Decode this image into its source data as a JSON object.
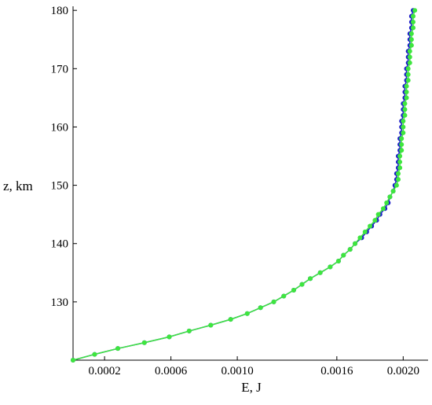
{
  "chart_data": {
    "type": "scatter",
    "xlabel": "E, J",
    "ylabel": "z, km",
    "xlim": [
      1e-05,
      0.00215
    ],
    "ylim": [
      120,
      180.7
    ],
    "xticks": [
      0.0002,
      0.0006,
      {
        "value": 0.001,
        "label": "0.0010"
      },
      0.0016,
      {
        "value": 0.002,
        "label": "0.0020"
      }
    ],
    "yticks": [
      130,
      140,
      150,
      160,
      170,
      180
    ],
    "series": [
      {
        "color": "#1c1cc8",
        "x": [
          1e-05,
          0.00014,
          0.00028,
          0.00044,
          0.00059,
          0.00071,
          0.00084,
          0.00096,
          0.00106,
          0.00114,
          0.00122,
          0.00128,
          0.00134,
          0.00139,
          0.00144,
          0.0015,
          0.00156,
          0.00161,
          0.00164,
          0.00168,
          0.00171,
          0.00175,
          0.00178,
          0.00181,
          0.00184,
          0.00186,
          0.00189,
          0.00191,
          0.00192,
          0.00194,
          0.00195,
          0.00196,
          0.00196,
          0.00197,
          0.00197,
          0.00197,
          0.00198,
          0.00198,
          0.00198,
          0.00199,
          0.00199,
          0.00199,
          0.002,
          0.002,
          0.002,
          0.00201,
          0.00201,
          0.00201,
          0.00202,
          0.00202,
          0.00202,
          0.00203,
          0.00203,
          0.00203,
          0.00204,
          0.00204,
          0.00204,
          0.00205,
          0.00205,
          0.00205,
          0.00206
        ],
        "y": [
          120,
          121,
          122,
          123,
          124,
          125,
          126,
          127,
          128,
          129,
          130,
          131,
          132,
          133,
          134,
          135,
          136,
          137,
          138,
          139,
          140,
          141,
          142,
          143,
          144,
          145,
          146,
          147,
          148,
          149,
          150,
          151,
          152,
          153,
          154,
          155,
          156,
          157,
          158,
          159,
          160,
          161,
          162,
          163,
          164,
          165,
          166,
          167,
          168,
          169,
          170,
          171,
          172,
          173,
          174,
          175,
          176,
          177,
          178,
          179,
          180
        ]
      },
      {
        "color": "#3ee63e",
        "x": [
          1e-05,
          0.00014,
          0.00028,
          0.00044,
          0.00059,
          0.00071,
          0.00084,
          0.00096,
          0.00106,
          0.00114,
          0.00122,
          0.00128,
          0.00134,
          0.00139,
          0.00144,
          0.0015,
          0.00156,
          0.00161,
          0.00164,
          0.00168,
          0.00171,
          0.00174,
          0.00177,
          0.0018,
          0.00183,
          0.00185,
          0.00188,
          0.0019,
          0.00192,
          0.00194,
          0.00196,
          0.00197,
          0.00197,
          0.00198,
          0.00198,
          0.00198,
          0.00199,
          0.00199,
          0.00199,
          0.002,
          0.002,
          0.002,
          0.00201,
          0.00201,
          0.00201,
          0.00202,
          0.00202,
          0.00202,
          0.00203,
          0.00203,
          0.00203,
          0.00204,
          0.00204,
          0.00204,
          0.00205,
          0.00205,
          0.00205,
          0.00206,
          0.00206,
          0.00206,
          0.00207
        ],
        "y": [
          120,
          121,
          122,
          123,
          124,
          125,
          126,
          127,
          128,
          129,
          130,
          131,
          132,
          133,
          134,
          135,
          136,
          137,
          138,
          139,
          140,
          141,
          142,
          143,
          144,
          145,
          146,
          147,
          148,
          149,
          150,
          151,
          152,
          153,
          154,
          155,
          156,
          157,
          158,
          159,
          160,
          161,
          162,
          163,
          164,
          165,
          166,
          167,
          168,
          169,
          170,
          171,
          172,
          173,
          174,
          175,
          176,
          177,
          178,
          179,
          180
        ]
      }
    ]
  }
}
